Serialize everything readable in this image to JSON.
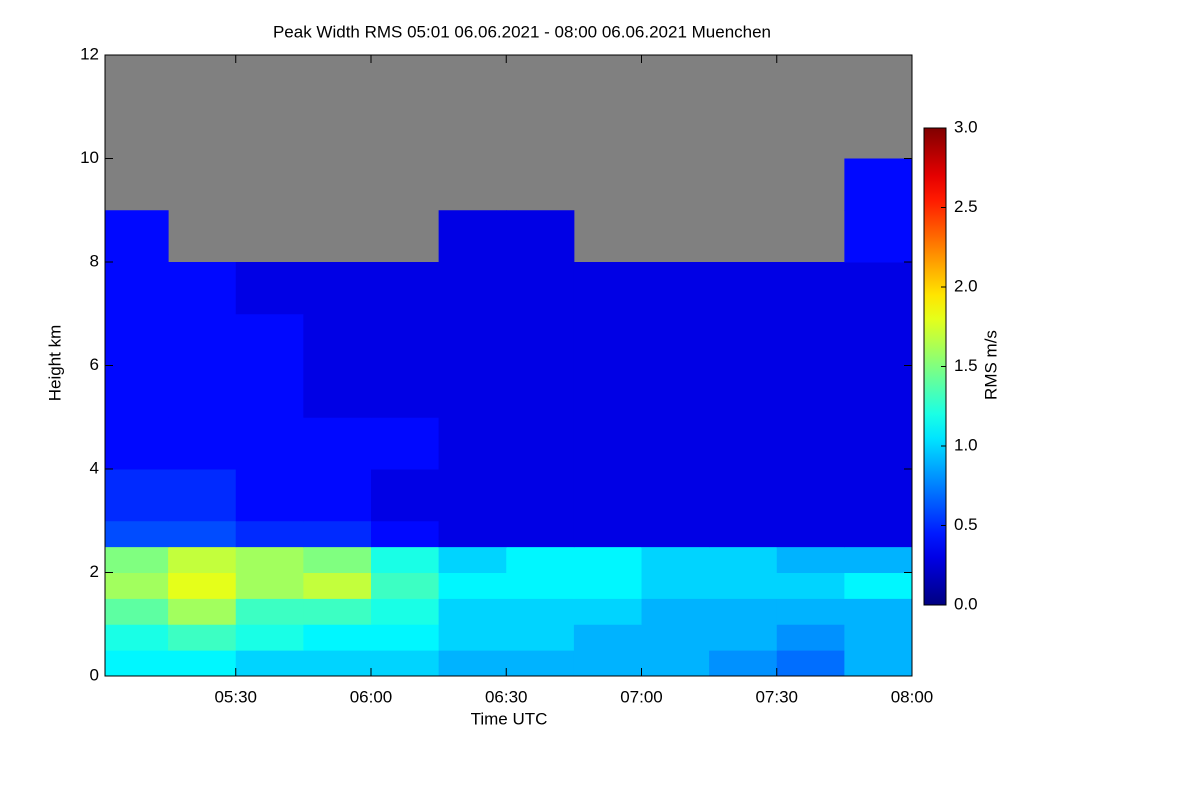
{
  "chart_data": {
    "type": "heatmap",
    "title": "Peak Width RMS   05:01 06.06.2021 - 08:00 06.06.2021 Muenchen",
    "x_label": "Time UTC",
    "y_label": "Height km",
    "colorbar_label": "RMS m/s",
    "colormap": "jet",
    "missing_color": "#808080",
    "xlim": [
      "05:01",
      "08:00"
    ],
    "xticks": [
      "05:30",
      "06:00",
      "06:30",
      "07:00",
      "07:30",
      "08:00"
    ],
    "ylim": [
      0,
      12
    ],
    "yticks": [
      0,
      2,
      4,
      6,
      8,
      10,
      12
    ],
    "clim": [
      0,
      3
    ],
    "cticks": [
      {
        "value": 0,
        "label": "0.0"
      },
      {
        "value": 0.5,
        "label": "0.5"
      },
      {
        "value": 1,
        "label": "1.0"
      },
      {
        "value": 1.5,
        "label": "1.5"
      },
      {
        "value": 2,
        "label": "2.0"
      },
      {
        "value": 2.5,
        "label": "2.5"
      },
      {
        "value": 3,
        "label": "3.0"
      }
    ],
    "x_edges": [
      "05:01",
      "05:15",
      "05:30",
      "05:45",
      "06:00",
      "06:15",
      "06:30",
      "06:45",
      "07:00",
      "07:15",
      "07:30",
      "07:45",
      "08:00"
    ],
    "y_edges": [
      0,
      0.5,
      1,
      1.5,
      2,
      2.5,
      3,
      4,
      5,
      6,
      7,
      8,
      9,
      10,
      11,
      12
    ],
    "z": [
      [
        1.1,
        1.1,
        1.0,
        1.0,
        1.0,
        0.9,
        0.9,
        0.9,
        0.9,
        0.8,
        0.7,
        0.9
      ],
      [
        1.2,
        1.3,
        1.2,
        1.1,
        1.1,
        1.0,
        1.0,
        0.9,
        0.9,
        0.9,
        0.8,
        0.9
      ],
      [
        1.4,
        1.6,
        1.3,
        1.3,
        1.2,
        1.0,
        1.0,
        1.0,
        0.9,
        0.9,
        0.9,
        0.9
      ],
      [
        1.6,
        1.8,
        1.6,
        1.7,
        1.3,
        1.1,
        1.1,
        1.1,
        1.0,
        1.0,
        1.0,
        1.1
      ],
      [
        1.5,
        1.7,
        1.6,
        1.5,
        1.2,
        1.0,
        1.1,
        1.1,
        1.0,
        1.0,
        0.9,
        0.9
      ],
      [
        0.6,
        0.6,
        0.5,
        0.5,
        0.4,
        0.3,
        0.3,
        0.3,
        0.3,
        0.3,
        0.3,
        0.3
      ],
      [
        0.5,
        0.5,
        0.4,
        0.4,
        0.3,
        0.3,
        0.3,
        0.3,
        0.3,
        0.3,
        0.3,
        0.3
      ],
      [
        0.4,
        0.4,
        0.4,
        0.4,
        0.4,
        0.3,
        0.3,
        0.3,
        0.3,
        0.3,
        0.3,
        0.3
      ],
      [
        0.4,
        0.4,
        0.4,
        0.3,
        0.3,
        0.3,
        0.3,
        0.3,
        0.3,
        0.3,
        0.3,
        0.3
      ],
      [
        0.4,
        0.4,
        0.4,
        0.3,
        0.3,
        0.3,
        0.3,
        0.3,
        0.3,
        0.3,
        0.3,
        0.3
      ],
      [
        0.4,
        0.4,
        0.3,
        0.3,
        0.3,
        0.3,
        0.3,
        0.3,
        0.3,
        0.3,
        0.3,
        0.3
      ],
      [
        0.4,
        null,
        null,
        null,
        null,
        0.3,
        0.3,
        null,
        null,
        null,
        null,
        0.4
      ],
      [
        null,
        null,
        null,
        null,
        null,
        null,
        null,
        null,
        null,
        null,
        null,
        0.4
      ],
      [
        null,
        null,
        null,
        null,
        null,
        null,
        null,
        null,
        null,
        null,
        null,
        null
      ],
      [
        null,
        null,
        null,
        null,
        null,
        null,
        null,
        null,
        null,
        null,
        null,
        null
      ]
    ]
  }
}
